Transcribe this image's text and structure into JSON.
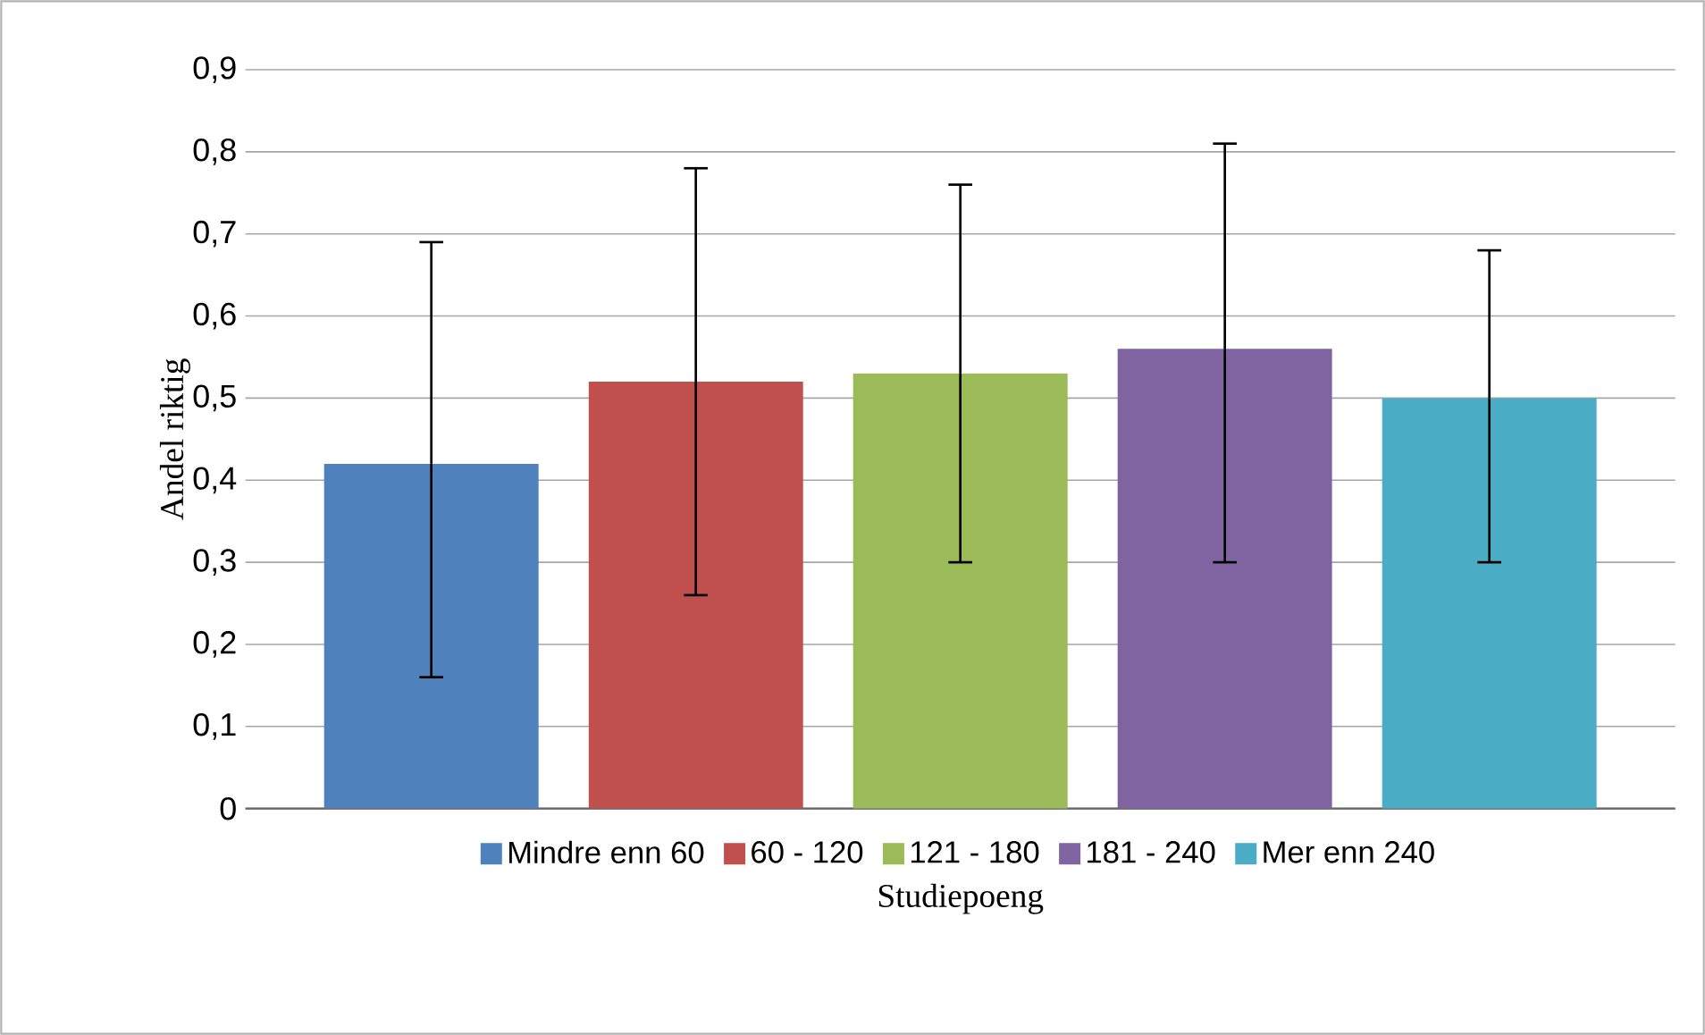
{
  "chart_data": {
    "type": "bar",
    "xlabel": "Studiepoeng",
    "ylabel": "Andel riktig",
    "categories": [
      null
    ],
    "series": [
      {
        "name": "Mindre enn 60",
        "color": "#4f81bd",
        "values": [
          0.42
        ],
        "errors": [
          [
            0.16,
            0.69
          ]
        ]
      },
      {
        "name": "60 - 120",
        "color": "#c0504d",
        "values": [
          0.52
        ],
        "errors": [
          [
            0.26,
            0.78
          ]
        ]
      },
      {
        "name": "121 - 180",
        "color": "#9bbb59",
        "values": [
          0.53
        ],
        "errors": [
          [
            0.3,
            0.76
          ]
        ]
      },
      {
        "name": "181 - 240",
        "color": "#8064a2",
        "values": [
          0.56
        ],
        "errors": [
          [
            0.3,
            0.81
          ]
        ]
      },
      {
        "name": "Mer enn 240",
        "color": "#4bacc6",
        "values": [
          0.5
        ],
        "errors": [
          [
            0.3,
            0.68
          ]
        ]
      }
    ],
    "ylim": [
      0,
      0.9
    ],
    "yticks": [
      {
        "value": 0,
        "label": "0"
      },
      {
        "value": 0.1,
        "label": "0,1"
      },
      {
        "value": 0.2,
        "label": "0,2"
      },
      {
        "value": 0.3,
        "label": "0,3"
      },
      {
        "value": 0.4,
        "label": "0,4"
      },
      {
        "value": 0.5,
        "label": "0,5"
      },
      {
        "value": 0.6,
        "label": "0,6"
      },
      {
        "value": 0.7,
        "label": "0,7"
      },
      {
        "value": 0.8,
        "label": "0,8"
      },
      {
        "value": 0.9,
        "label": "0,9"
      }
    ],
    "grid": "y",
    "legend": "bottom"
  }
}
